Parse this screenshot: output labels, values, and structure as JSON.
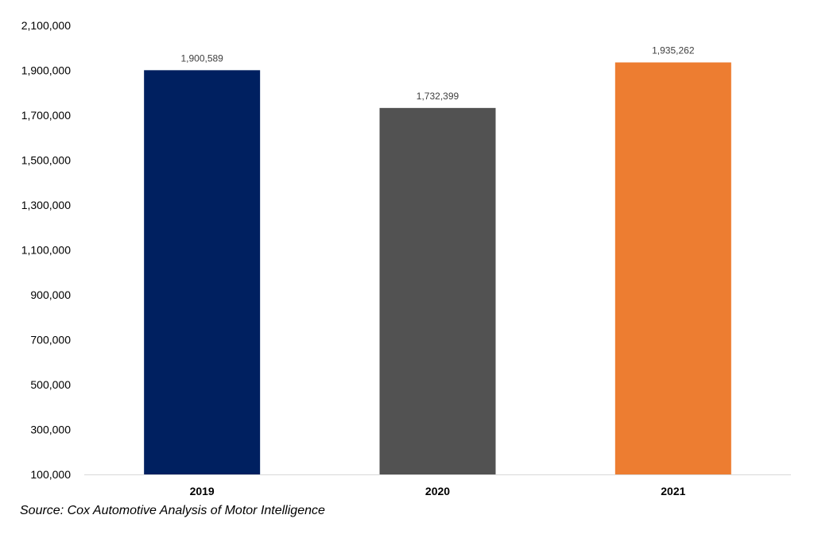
{
  "chart_data": {
    "type": "bar",
    "title": "",
    "xlabel": "",
    "ylabel": "",
    "categories": [
      "2019",
      "2020",
      "2021"
    ],
    "values": [
      1900589,
      1732399,
      1935262
    ],
    "value_labels": [
      "1,900,589",
      "1,732,399",
      "1,935,262"
    ],
    "bar_colors": [
      "#002060",
      "#525252",
      "#ED7D31"
    ],
    "ylim": [
      100000,
      2100000
    ],
    "yticks": [
      100000,
      300000,
      500000,
      700000,
      900000,
      1100000,
      1300000,
      1500000,
      1700000,
      1900000,
      2100000
    ],
    "ytick_labels": [
      "100,000",
      "300,000",
      "500,000",
      "700,000",
      "900,000",
      "1,100,000",
      "1,300,000",
      "1,500,000",
      "1,700,000",
      "1,900,000",
      "2,100,000"
    ],
    "grid": false,
    "legend": "none"
  },
  "source_note": "Source: Cox Automotive Analysis of Motor Intelligence"
}
